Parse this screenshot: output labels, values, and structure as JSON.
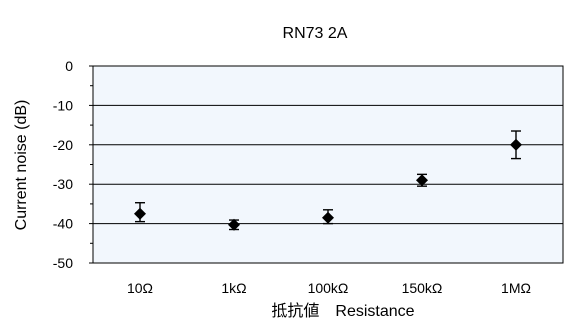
{
  "chart_data": {
    "type": "scatter",
    "title": "RN73 2A",
    "xlabel": "抵抗値　Resistance",
    "ylabel": "Current noise (dB)",
    "categories": [
      "10Ω",
      "1kΩ",
      "100kΩ",
      "150kΩ",
      "1MΩ"
    ],
    "ylim": [
      -50,
      0
    ],
    "yticks": [
      "0",
      "-10",
      "-20",
      "-30",
      "-40",
      "-50"
    ],
    "grid": true,
    "series": [
      {
        "values": [
          -37.5,
          -40.3,
          -38.5,
          -29.0,
          -20.0
        ],
        "err_upper": [
          2.8,
          1.2,
          2.0,
          1.5,
          3.5
        ],
        "err_lower": [
          2.0,
          1.2,
          1.5,
          1.5,
          3.5
        ]
      }
    ],
    "colors": {
      "plot_background": "#f2f7fd",
      "marker": "#000000",
      "grid": "#000000"
    }
  }
}
